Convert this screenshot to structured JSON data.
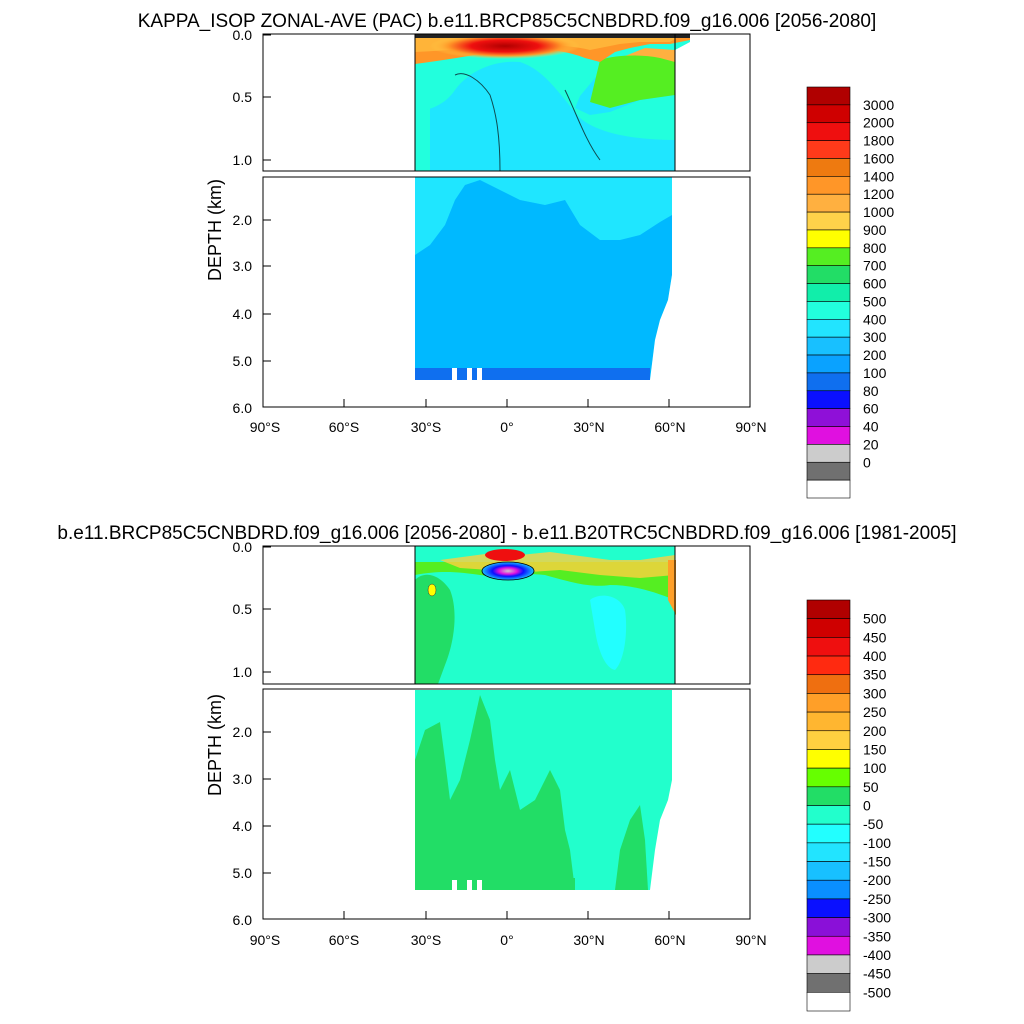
{
  "chart_data": [
    {
      "type": "heatmap",
      "title": "KAPPA_ISOP ZONAL-AVE (PAC) b.e11.BRCP85C5CNBDRD.f09_g16.006 [2056-2080]",
      "xlabel": "",
      "ylabel": "DEPTH (km)",
      "x_ticks": [
        "90°S",
        "60°S",
        "30°S",
        "0°",
        "30°N",
        "60°N",
        "90°N"
      ],
      "y_ticks_upper": [
        "0.0",
        "0.5",
        "1.0"
      ],
      "y_ticks_lower": [
        "2.0",
        "3.0",
        "4.0",
        "5.0",
        "6.0"
      ],
      "xlim": [
        -90,
        90
      ],
      "ylim_upper_km": [
        0,
        1.1
      ],
      "ylim_lower_km": [
        1.1,
        6.0
      ],
      "data_lat_range": [
        -34,
        67
      ],
      "colorbar": {
        "levels": [
          "3000",
          "2000",
          "1800",
          "1600",
          "1400",
          "1200",
          "1000",
          "900",
          "800",
          "700",
          "600",
          "500",
          "400",
          "300",
          "200",
          "100",
          "80",
          "60",
          "40",
          "20",
          "0"
        ],
        "colors": [
          "#b00000",
          "#cf0000",
          "#ef0f0f",
          "#ff3a1a",
          "#ee7a10",
          "#ff9628",
          "#ffb040",
          "#ffd24a",
          "#ffff00",
          "#55ee22",
          "#22dd66",
          "#11eeaa",
          "#22ffdd",
          "#22e4ff",
          "#18c0ff",
          "#0aa2ff",
          "#0f6fef",
          "#0a10ff",
          "#8f10d8",
          "#e010e0",
          "#cccccc",
          "#707070",
          "#ffffff"
        ]
      }
    },
    {
      "type": "heatmap",
      "title": "b.e11.BRCP85C5CNBDRD.f09_g16.006 [2056-2080] - b.e11.B20TRC5CNBDRD.f09_g16.006 [1981-2005]",
      "xlabel": "",
      "ylabel": "DEPTH (km)",
      "x_ticks": [
        "90°S",
        "60°S",
        "30°S",
        "0°",
        "30°N",
        "60°N",
        "90°N"
      ],
      "y_ticks_upper": [
        "0.0",
        "0.5",
        "1.0"
      ],
      "y_ticks_lower": [
        "2.0",
        "3.0",
        "4.0",
        "5.0",
        "6.0"
      ],
      "xlim": [
        -90,
        90
      ],
      "ylim_upper_km": [
        0,
        1.1
      ],
      "ylim_lower_km": [
        1.1,
        6.0
      ],
      "data_lat_range": [
        -34,
        62
      ],
      "colorbar": {
        "levels": [
          "500",
          "450",
          "400",
          "350",
          "300",
          "250",
          "200",
          "150",
          "100",
          "50",
          "0",
          "-50",
          "-100",
          "-150",
          "-200",
          "-250",
          "-300",
          "-350",
          "-400",
          "-450",
          "-500"
        ],
        "colors": [
          "#b00000",
          "#cf0000",
          "#ef0f0f",
          "#ff2a10",
          "#ef6f10",
          "#ff9f28",
          "#ffb630",
          "#ffd040",
          "#ffff00",
          "#66ff00",
          "#22dd66",
          "#22ffcc",
          "#22ffff",
          "#22e4ff",
          "#18c0ff",
          "#0a8fff",
          "#0a10ff",
          "#8a10d8",
          "#e010e0",
          "#cccccc",
          "#707070",
          "#ffffff"
        ]
      }
    }
  ]
}
